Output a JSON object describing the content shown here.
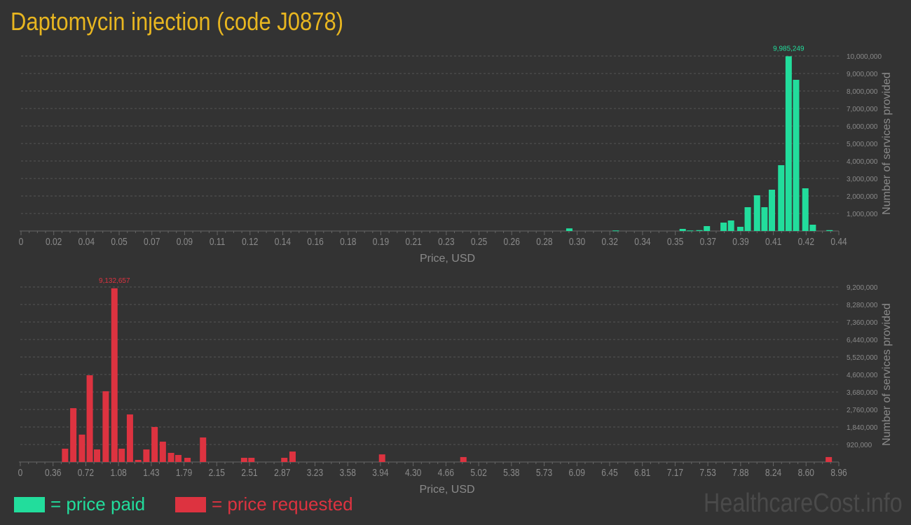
{
  "title": "Daptomycin injection (code J0878)",
  "legend": {
    "paid": "= price paid",
    "requested": "= price requested"
  },
  "watermark": "HealthcareCost.info",
  "colors": {
    "paid": "#22dd9c",
    "requested": "#dd3340",
    "title": "#e8b620"
  },
  "chart_data": [
    {
      "type": "bar",
      "xlabel": "Price, USD",
      "ylabel": "Number of services provided",
      "xlim": [
        0,
        0.44
      ],
      "ylim": [
        0,
        10000000
      ],
      "grid": true,
      "x_tick_labels": [
        "0",
        "0.02",
        "0.04",
        "0.05",
        "0.07",
        "0.09",
        "0.11",
        "0.12",
        "0.14",
        "0.16",
        "0.18",
        "0.19",
        "0.21",
        "0.23",
        "0.25",
        "0.26",
        "0.28",
        "0.30",
        "0.32",
        "0.34",
        "0.35",
        "0.37",
        "0.39",
        "0.41",
        "0.42",
        "0.44"
      ],
      "y_tick_labels": [
        "1,000,000",
        "2,000,000",
        "3,000,000",
        "4,000,000",
        "5,000,000",
        "6,000,000",
        "7,000,000",
        "8,000,000",
        "9,000,000",
        "10,000,000"
      ],
      "y_tick_values": [
        1000000,
        2000000,
        3000000,
        4000000,
        5000000,
        6000000,
        7000000,
        8000000,
        9000000,
        10000000
      ],
      "peak_label": "9,985,249",
      "series": [
        {
          "color": "#22dd9c",
          "x": [
            0.295,
            0.32,
            0.356,
            0.36,
            0.365,
            0.369,
            0.378,
            0.382,
            0.387,
            0.391,
            0.396,
            0.4,
            0.404,
            0.409,
            0.413,
            0.417,
            0.422,
            0.426,
            0.435
          ],
          "values": [
            150000,
            30000,
            120000,
            30000,
            50000,
            280000,
            480000,
            600000,
            240000,
            1360000,
            2040000,
            1360000,
            2360000,
            3760000,
            9985249,
            8640000,
            2440000,
            360000,
            50000
          ]
        }
      ]
    },
    {
      "type": "bar",
      "xlabel": "Price, USD",
      "ylabel": "Number of services provided",
      "xlim": [
        0,
        8.96
      ],
      "ylim": [
        0,
        9200000
      ],
      "grid": true,
      "x_tick_labels": [
        "0",
        "0.36",
        "0.72",
        "1.08",
        "1.43",
        "1.79",
        "2.15",
        "2.51",
        "2.87",
        "3.23",
        "3.58",
        "3.94",
        "4.30",
        "4.66",
        "5.02",
        "5.38",
        "5.73",
        "6.09",
        "6.45",
        "6.81",
        "7.17",
        "7.53",
        "7.88",
        "8.24",
        "8.60",
        "8.96"
      ],
      "y_tick_labels": [
        "920,000",
        "1,840,000",
        "2,760,000",
        "3,680,000",
        "4,600,000",
        "5,520,000",
        "6,440,000",
        "7,360,000",
        "8,280,000",
        "9,200,000"
      ],
      "y_tick_values": [
        920000,
        1840000,
        2760000,
        3680000,
        4600000,
        5520000,
        6440000,
        7360000,
        8280000,
        9200000
      ],
      "peak_label": "9,132,657",
      "series": [
        {
          "color": "#dd3340",
          "x": [
            0.49,
            0.58,
            0.675,
            0.76,
            0.84,
            0.935,
            1.03,
            1.11,
            1.2,
            1.29,
            1.38,
            1.47,
            1.56,
            1.65,
            1.73,
            1.83,
            2.0,
            2.45,
            2.53,
            2.89,
            2.98,
            3.96,
            4.85,
            8.85
          ],
          "values": [
            700000,
            2830000,
            1440000,
            4560000,
            660000,
            3720000,
            9132657,
            700000,
            2500000,
            110000,
            660000,
            1840000,
            1070000,
            480000,
            370000,
            220000,
            1290000,
            220000,
            220000,
            220000,
            550000,
            400000,
            260000,
            260000
          ]
        }
      ]
    }
  ]
}
